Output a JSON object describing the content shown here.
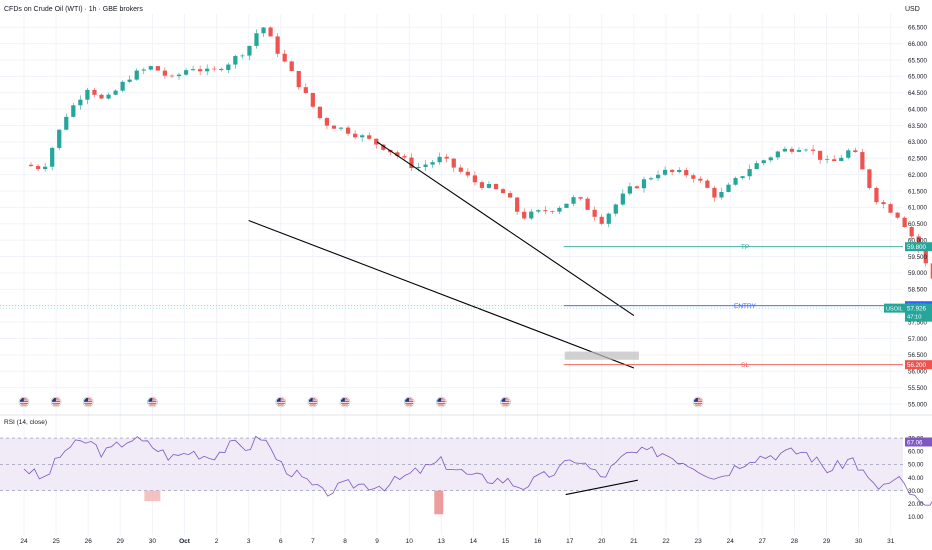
{
  "header": {
    "title": "CFDs on Crude Oil (WTI) · 1h · GBE brokers",
    "currency": "USD"
  },
  "colors": {
    "up": "#26a69a",
    "down": "#ef5350",
    "tp": "#26a69a",
    "entry": "#2962ff",
    "sl": "#ef5350",
    "rsi": "#7e57c2",
    "rsi_band": "#ede7f6",
    "grid": "#f0f3fa",
    "axis_text": "#131722"
  },
  "chart_data": [
    {
      "type": "candlestick",
      "title": "CFDs on Crude Oil (WTI) · 1h · GBE brokers",
      "ylim": [
        55.0,
        66.75
      ],
      "y_ticks": [
        "66.500",
        "66.000",
        "65.500",
        "65.000",
        "64.500",
        "64.000",
        "63.500",
        "63.000",
        "62.500",
        "62.000",
        "61.500",
        "61.000",
        "60.500",
        "60.000",
        "59.500",
        "59.000",
        "58.500",
        "58.000",
        "57.500",
        "57.000",
        "56.500",
        "56.000",
        "55.500",
        "55.000"
      ],
      "x_tick_labels": [
        "24",
        "25",
        "26",
        "29",
        "30",
        "Oct",
        "2",
        "3",
        "6",
        "7",
        "8",
        "9",
        "10",
        "13",
        "14",
        "15",
        "16",
        "17",
        "20",
        "21",
        "22",
        "23",
        "24",
        "27",
        "28",
        "29",
        "30",
        "31"
      ],
      "anchors": [
        [
          0,
          62.3
        ],
        [
          0.6,
          62.2
        ],
        [
          1.3,
          63.8
        ],
        [
          2.0,
          64.7
        ],
        [
          2.5,
          64.2
        ],
        [
          3.3,
          65.0
        ],
        [
          4.0,
          65.3
        ],
        [
          4.6,
          64.9
        ],
        [
          5.2,
          65.3
        ],
        [
          5.8,
          65.1
        ],
        [
          6.5,
          65.5
        ],
        [
          7.0,
          65.9
        ],
        [
          7.4,
          66.6
        ],
        [
          8.0,
          65.6
        ],
        [
          8.6,
          64.7
        ],
        [
          9.3,
          63.6
        ],
        [
          10.2,
          63.3
        ],
        [
          11.3,
          62.8
        ],
        [
          12.2,
          62.2
        ],
        [
          13.0,
          62.5
        ],
        [
          14.0,
          61.8
        ],
        [
          15.0,
          61.4
        ],
        [
          15.5,
          60.7
        ],
        [
          16.6,
          61.0
        ],
        [
          17.2,
          61.3
        ],
        [
          18.0,
          60.6
        ],
        [
          18.8,
          61.5
        ],
        [
          19.8,
          62.1
        ],
        [
          20.8,
          62.0
        ],
        [
          21.6,
          61.3
        ],
        [
          22.6,
          62.2
        ],
        [
          23.5,
          62.7
        ],
        [
          24.3,
          62.9
        ],
        [
          25.1,
          62.3
        ],
        [
          25.8,
          62.8
        ],
        [
          26.5,
          61.3
        ],
        [
          27.3,
          60.7
        ],
        [
          27.8,
          59.9
        ],
        [
          28.3,
          58.8
        ],
        [
          28.7,
          59.9
        ],
        [
          29.4,
          60.0
        ],
        [
          30.1,
          59.6
        ],
        [
          30.7,
          59.3
        ],
        [
          31.2,
          57.9
        ],
        [
          31.6,
          58.5
        ],
        [
          32.1,
          58.6
        ],
        [
          33.0,
          58.4
        ],
        [
          33.8,
          58.9
        ],
        [
          34.5,
          58.5
        ],
        [
          35.3,
          58.8
        ],
        [
          35.9,
          58.4
        ],
        [
          36.4,
          58.0
        ],
        [
          36.9,
          57.4
        ],
        [
          37.5,
          57.2
        ],
        [
          38.0,
          57.5
        ],
        [
          38.7,
          57.3
        ],
        [
          39.5,
          57.1
        ],
        [
          40.1,
          56.9
        ],
        [
          40.5,
          57.3
        ],
        [
          41.2,
          57.5
        ],
        [
          41.7,
          57.95
        ]
      ],
      "levels": [
        {
          "name": "TP",
          "value": 59.8,
          "label": "59.800"
        },
        {
          "name": "ENTRY",
          "value": 58.0,
          "label": "58.000"
        },
        {
          "name": "SL",
          "value": 56.2,
          "label": "56.200"
        }
      ],
      "last_price": {
        "symbol": "USOIL",
        "value": "57.926",
        "countdown": "47:10"
      },
      "wedge": [
        {
          "from": [
            "3",
            60.6
          ],
          "to": [
            "21",
            56.1
          ]
        },
        {
          "from": [
            "9",
            63.0
          ],
          "to": [
            "21",
            57.7
          ]
        }
      ],
      "zone": {
        "from": "17",
        "to": "21",
        "y0": 56.35,
        "y1": 56.6
      },
      "event_markers": [
        "25",
        "26",
        "30",
        "6",
        "7",
        "8",
        "10",
        "13",
        "15",
        "23",
        "24"
      ],
      "event_flag": "US"
    },
    {
      "type": "line",
      "title": "RSI (14, close)",
      "ylim": [
        0,
        80
      ],
      "y_ticks": [
        "70.00",
        "60.00",
        "50.00",
        "40.00",
        "30.00",
        "20.00",
        "10.00"
      ],
      "band": [
        30,
        70
      ],
      "last_value": "67.06",
      "anchors": [
        [
          0,
          48
        ],
        [
          0.6,
          38
        ],
        [
          1.3,
          62
        ],
        [
          2.0,
          68
        ],
        [
          2.5,
          58
        ],
        [
          3.3,
          70
        ],
        [
          4.0,
          64
        ],
        [
          4.6,
          55
        ],
        [
          5.2,
          60
        ],
        [
          5.8,
          56
        ],
        [
          6.5,
          65
        ],
        [
          7.0,
          63
        ],
        [
          7.4,
          72
        ],
        [
          8.0,
          50
        ],
        [
          8.6,
          40
        ],
        [
          9.3,
          28
        ],
        [
          10.2,
          35
        ],
        [
          11.3,
          34
        ],
        [
          12.2,
          44
        ],
        [
          13.0,
          52
        ],
        [
          14.0,
          40
        ],
        [
          15.0,
          38
        ],
        [
          15.5,
          33
        ],
        [
          16.6,
          45
        ],
        [
          17.2,
          55
        ],
        [
          18.0,
          40
        ],
        [
          18.8,
          58
        ],
        [
          19.8,
          60
        ],
        [
          20.8,
          50
        ],
        [
          21.6,
          40
        ],
        [
          22.6,
          55
        ],
        [
          23.5,
          58
        ],
        [
          24.3,
          60
        ],
        [
          25.1,
          45
        ],
        [
          25.8,
          55
        ],
        [
          26.5,
          32
        ],
        [
          27.3,
          38
        ],
        [
          27.8,
          22
        ],
        [
          28.3,
          14
        ],
        [
          28.7,
          50
        ],
        [
          29.4,
          55
        ],
        [
          30.1,
          45
        ],
        [
          30.7,
          42
        ],
        [
          31.2,
          28
        ],
        [
          31.6,
          48
        ],
        [
          32.1,
          50
        ],
        [
          33.0,
          45
        ],
        [
          33.8,
          55
        ],
        [
          34.5,
          50
        ],
        [
          35.3,
          52
        ],
        [
          35.9,
          44
        ],
        [
          36.4,
          40
        ],
        [
          36.9,
          32
        ],
        [
          37.5,
          30
        ],
        [
          38.0,
          40
        ],
        [
          38.7,
          45
        ],
        [
          39.5,
          48
        ],
        [
          40.1,
          40
        ],
        [
          40.5,
          55
        ],
        [
          41.2,
          58
        ],
        [
          41.7,
          67
        ]
      ],
      "divergence": {
        "from": [
          "17",
          27
        ],
        "to": [
          "21",
          38
        ]
      }
    }
  ]
}
